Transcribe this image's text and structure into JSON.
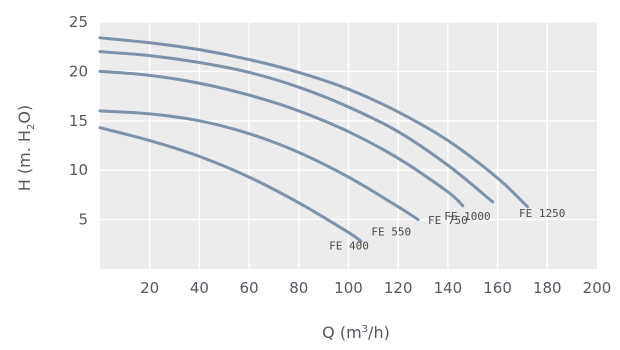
{
  "chart_data": {
    "type": "line",
    "xlim": [
      0,
      200
    ],
    "ylim": [
      0,
      25
    ],
    "x_ticks": [
      "20",
      "40",
      "60",
      "80",
      "100",
      "120",
      "140",
      "160",
      "180",
      "200"
    ],
    "y_ticks": [
      "5",
      "10",
      "15",
      "20",
      "25"
    ],
    "xlabel": {
      "main": "Q (m",
      "sup": "3",
      "tail": "/h)"
    },
    "ylabel": {
      "main": "H (m. H",
      "sub": "2",
      "tail": "O)"
    },
    "grid": true,
    "colors": {
      "line": "#7d92a8",
      "background": "#ececec",
      "grid": "#ffffff"
    },
    "series": [
      {
        "name": "FE 400",
        "x": [
          0,
          20,
          40,
          60,
          80,
          100,
          105
        ],
        "y": [
          14.3,
          13,
          11.4,
          9.3,
          6.7,
          3.7,
          2.8
        ]
      },
      {
        "name": "FE 550",
        "x": [
          0,
          20,
          40,
          60,
          80,
          100,
          120,
          128
        ],
        "y": [
          16,
          15.7,
          15,
          13.7,
          11.8,
          9.3,
          6.3,
          5.0
        ]
      },
      {
        "name": "FE 750",
        "x": [
          0,
          20,
          40,
          60,
          80,
          100,
          120,
          140,
          146
        ],
        "y": [
          20,
          19.6,
          18.8,
          17.6,
          16,
          13.9,
          11.2,
          7.8,
          6.4
        ]
      },
      {
        "name": "FE 1000",
        "x": [
          0,
          20,
          40,
          60,
          80,
          100,
          120,
          140,
          158
        ],
        "y": [
          22,
          21.6,
          20.9,
          19.9,
          18.4,
          16.4,
          13.9,
          10.5,
          6.8
        ]
      },
      {
        "name": "FE 1250",
        "x": [
          0,
          20,
          40,
          60,
          80,
          100,
          120,
          140,
          160,
          172
        ],
        "y": [
          23.4,
          22.9,
          22.2,
          21.2,
          19.9,
          18.2,
          15.9,
          13.0,
          9.2,
          6.3
        ]
      }
    ]
  }
}
